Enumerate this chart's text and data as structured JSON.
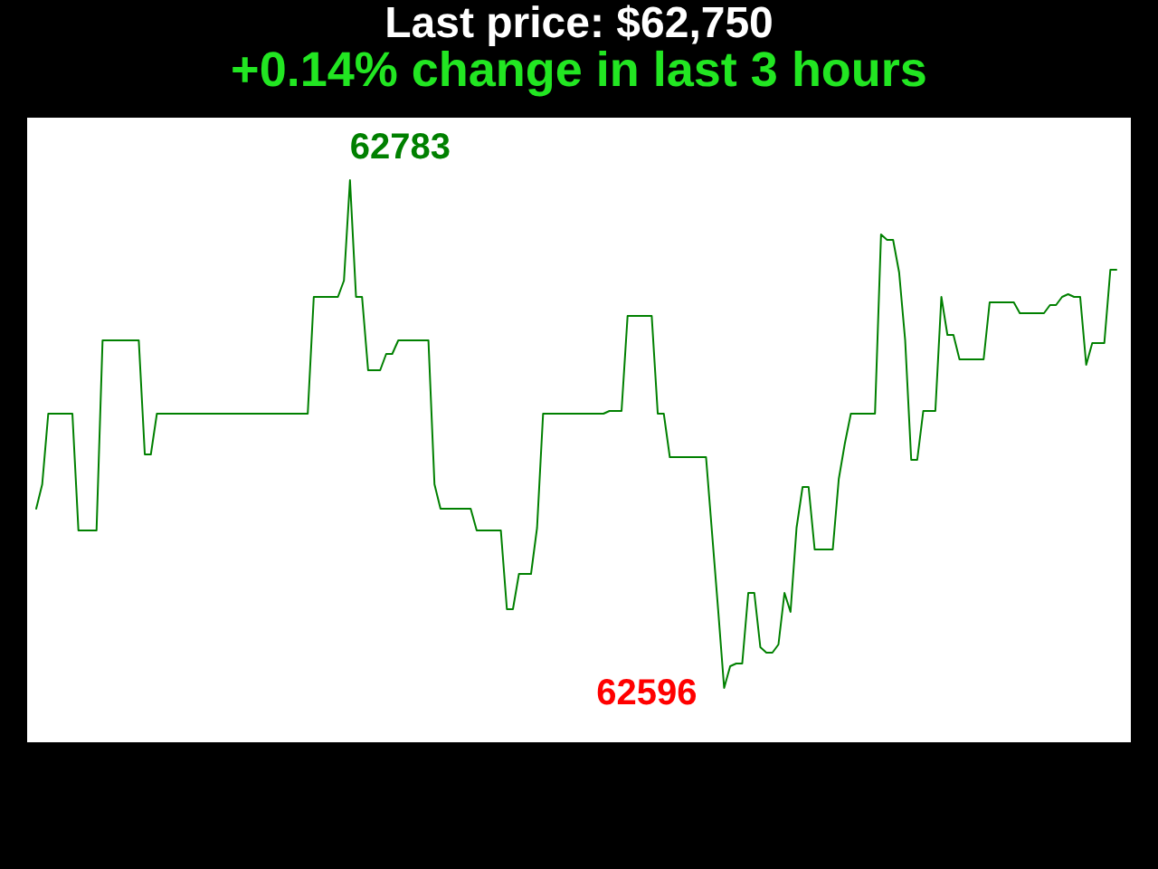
{
  "chart_data": {
    "type": "line",
    "title": "Last price: $62,750",
    "subtitle": "+0.14% change in last 3 hours",
    "categories": [
      null,
      null,
      null,
      null,
      null,
      null,
      null,
      null,
      null,
      null,
      null,
      null,
      null,
      null,
      null,
      null,
      null,
      null,
      null,
      null,
      null,
      null,
      null,
      null,
      null,
      null,
      null,
      null,
      null,
      null,
      null,
      null,
      null,
      null,
      null,
      null,
      null,
      null,
      null,
      null,
      null,
      null,
      null,
      null,
      null,
      null,
      null,
      null,
      null,
      null,
      null,
      null,
      null,
      null,
      null,
      null,
      null,
      null,
      null,
      null,
      null,
      null,
      null,
      null,
      null,
      null,
      null,
      null,
      null,
      null,
      null,
      null,
      null,
      null,
      null,
      null,
      null,
      null,
      null,
      null,
      null,
      null,
      null,
      null,
      null,
      null,
      null,
      null,
      null,
      null,
      null,
      null,
      null,
      null,
      null,
      null,
      null,
      null,
      null,
      null,
      null,
      null,
      null,
      null,
      null,
      null,
      null,
      null,
      null,
      null,
      null,
      null,
      null,
      null,
      null,
      null,
      null,
      null,
      null,
      null,
      null,
      null,
      null,
      null,
      null,
      null,
      null,
      null,
      null,
      null,
      null,
      null,
      null,
      null,
      null,
      null,
      null,
      null,
      null,
      null,
      null,
      null,
      null,
      null,
      null,
      null,
      null,
      null,
      null,
      null,
      null,
      null,
      null,
      null,
      null,
      null,
      null,
      null,
      null,
      null,
      null,
      null,
      null,
      null,
      null,
      null,
      null,
      null,
      null,
      null,
      null,
      null,
      null,
      null,
      null,
      null,
      null,
      null,
      null,
      null
    ],
    "series": [
      {
        "color": "#008000",
        "values": [
          62662,
          62671,
          62697,
          62697,
          62697,
          62697,
          62697,
          62654,
          62654,
          62654,
          62654,
          62724,
          62724,
          62724,
          62724,
          62724,
          62724,
          62724,
          62682,
          62682,
          62697,
          62697,
          62697,
          62697,
          62697,
          62697,
          62697,
          62697,
          62697,
          62697,
          62697,
          62697,
          62697,
          62697,
          62697,
          62697,
          62697,
          62697,
          62697,
          62697,
          62697,
          62697,
          62697,
          62697,
          62697,
          62697,
          62740,
          62740,
          62740,
          62740,
          62740,
          62746,
          62783,
          62740,
          62740,
          62713,
          62713,
          62713,
          62719,
          62719,
          62724,
          62724,
          62724,
          62724,
          62724,
          62724,
          62671,
          62662,
          62662,
          62662,
          62662,
          62662,
          62662,
          62654,
          62654,
          62654,
          62654,
          62654,
          62625,
          62625,
          62638,
          62638,
          62638,
          62655,
          62697,
          62697,
          62697,
          62697,
          62697,
          62697,
          62697,
          62697,
          62697,
          62697,
          62697,
          62698,
          62698,
          62698,
          62733,
          62733,
          62733,
          62733,
          62733,
          62697,
          62697,
          62681,
          62681,
          62681,
          62681,
          62681,
          62681,
          62681,
          62653,
          62625,
          62596,
          62604,
          62605,
          62605,
          62631,
          62631,
          62611,
          62609,
          62609,
          62612,
          62631,
          62624,
          62655,
          62670,
          62670,
          62647,
          62647,
          62647,
          62647,
          62673,
          62686,
          62697,
          62697,
          62697,
          62697,
          62697,
          62763,
          62761,
          62761,
          62749,
          62724,
          62680,
          62680,
          62698,
          62698,
          62698,
          62740,
          62726,
          62726,
          62717,
          62717,
          62717,
          62717,
          62717,
          62738,
          62738,
          62738,
          62738,
          62738,
          62734,
          62734,
          62734,
          62734,
          62734,
          62737,
          62737,
          62740,
          62741,
          62740,
          62740,
          62715,
          62723,
          62723,
          62723,
          62750,
          62750
        ],
        "value_labels": [
          null,
          null,
          null,
          null,
          null,
          null,
          null,
          null,
          null,
          null,
          null,
          null,
          null,
          null,
          null,
          null,
          null,
          null,
          null,
          null,
          null,
          null,
          null,
          null,
          null,
          null,
          null,
          null,
          null,
          null,
          null,
          null,
          null,
          null,
          null,
          null,
          null,
          null,
          null,
          null,
          null,
          null,
          null,
          null,
          null,
          null,
          null,
          null,
          null,
          null,
          null,
          null,
          "62783",
          null,
          null,
          null,
          null,
          null,
          null,
          null,
          null,
          null,
          null,
          null,
          null,
          null,
          null,
          null,
          null,
          null,
          null,
          null,
          null,
          null,
          null,
          null,
          null,
          null,
          null,
          null,
          null,
          null,
          null,
          null,
          null,
          null,
          null,
          null,
          null,
          null,
          null,
          null,
          null,
          null,
          null,
          null,
          null,
          null,
          null,
          null,
          null,
          null,
          null,
          null,
          null,
          null,
          null,
          null,
          null,
          null,
          null,
          null,
          null,
          null,
          "62596",
          null,
          null,
          null,
          null,
          null,
          null,
          null,
          null,
          null,
          null,
          null,
          null,
          null,
          null,
          null,
          null,
          null,
          null,
          null,
          null,
          null,
          null,
          null,
          null,
          null,
          null,
          null,
          null,
          null,
          null,
          null,
          null,
          null,
          null,
          null,
          null,
          null,
          null,
          null,
          null,
          null,
          null,
          null,
          null,
          null,
          null,
          null,
          null,
          null,
          null,
          null,
          null,
          null,
          null,
          null,
          null,
          null,
          null,
          null,
          null,
          null,
          null,
          null,
          null,
          null
        ]
      }
    ],
    "ylim": [
      62576,
      62806
    ],
    "tick_labels": false,
    "marker": "none",
    "line_style": "solid"
  }
}
